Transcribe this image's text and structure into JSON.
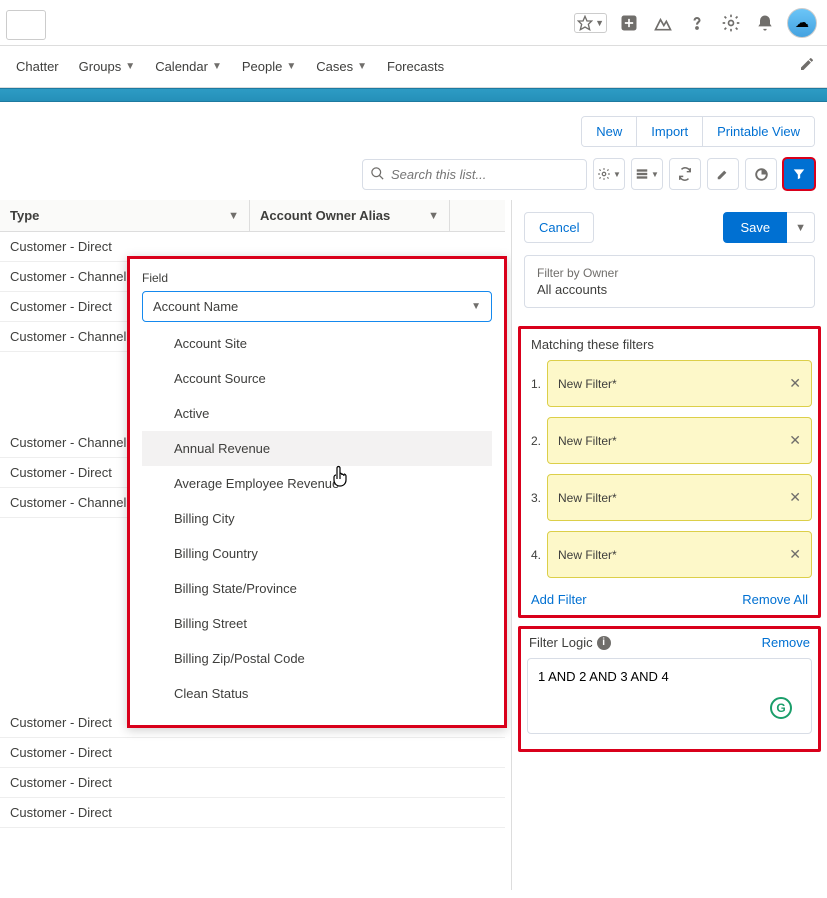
{
  "nav": {
    "items": [
      "Chatter",
      "Groups",
      "Calendar",
      "People",
      "Cases",
      "Forecasts"
    ],
    "carets": [
      false,
      true,
      true,
      true,
      true,
      false
    ]
  },
  "actions": {
    "new": "New",
    "import": "Import",
    "printable": "Printable View"
  },
  "search_placeholder": "Search this list...",
  "columns": {
    "type": "Type",
    "owner": "Account Owner Alias"
  },
  "rows": [
    "Customer - Direct",
    "Customer - Channel",
    "Customer - Direct",
    "Customer - Channel",
    "",
    "",
    "Customer - Channel",
    "Customer - Direct",
    "Customer - Channel",
    "",
    "",
    "",
    "",
    "",
    "Customer - Direct",
    "Customer - Direct",
    "Customer - Direct",
    "Customer - Direct"
  ],
  "popover": {
    "label": "Field",
    "selected": "Account Name",
    "options": [
      "Account Site",
      "Account Source",
      "Active",
      "Annual Revenue",
      "Average Employee Revenue",
      "Billing City",
      "Billing Country",
      "Billing State/Province",
      "Billing Street",
      "Billing Zip/Postal Code",
      "Clean Status"
    ],
    "hover_index": 3
  },
  "filter_panel": {
    "cancel": "Cancel",
    "save": "Save",
    "owner_label": "Filter by Owner",
    "owner_value": "All accounts",
    "match_title": "Matching these filters",
    "filters": [
      "New Filter*",
      "New Filter*",
      "New Filter*",
      "New Filter*"
    ],
    "add": "Add Filter",
    "remove_all": "Remove All",
    "logic_label": "Filter Logic",
    "logic_remove": "Remove",
    "logic_value": "1 AND 2 AND 3 AND 4"
  }
}
